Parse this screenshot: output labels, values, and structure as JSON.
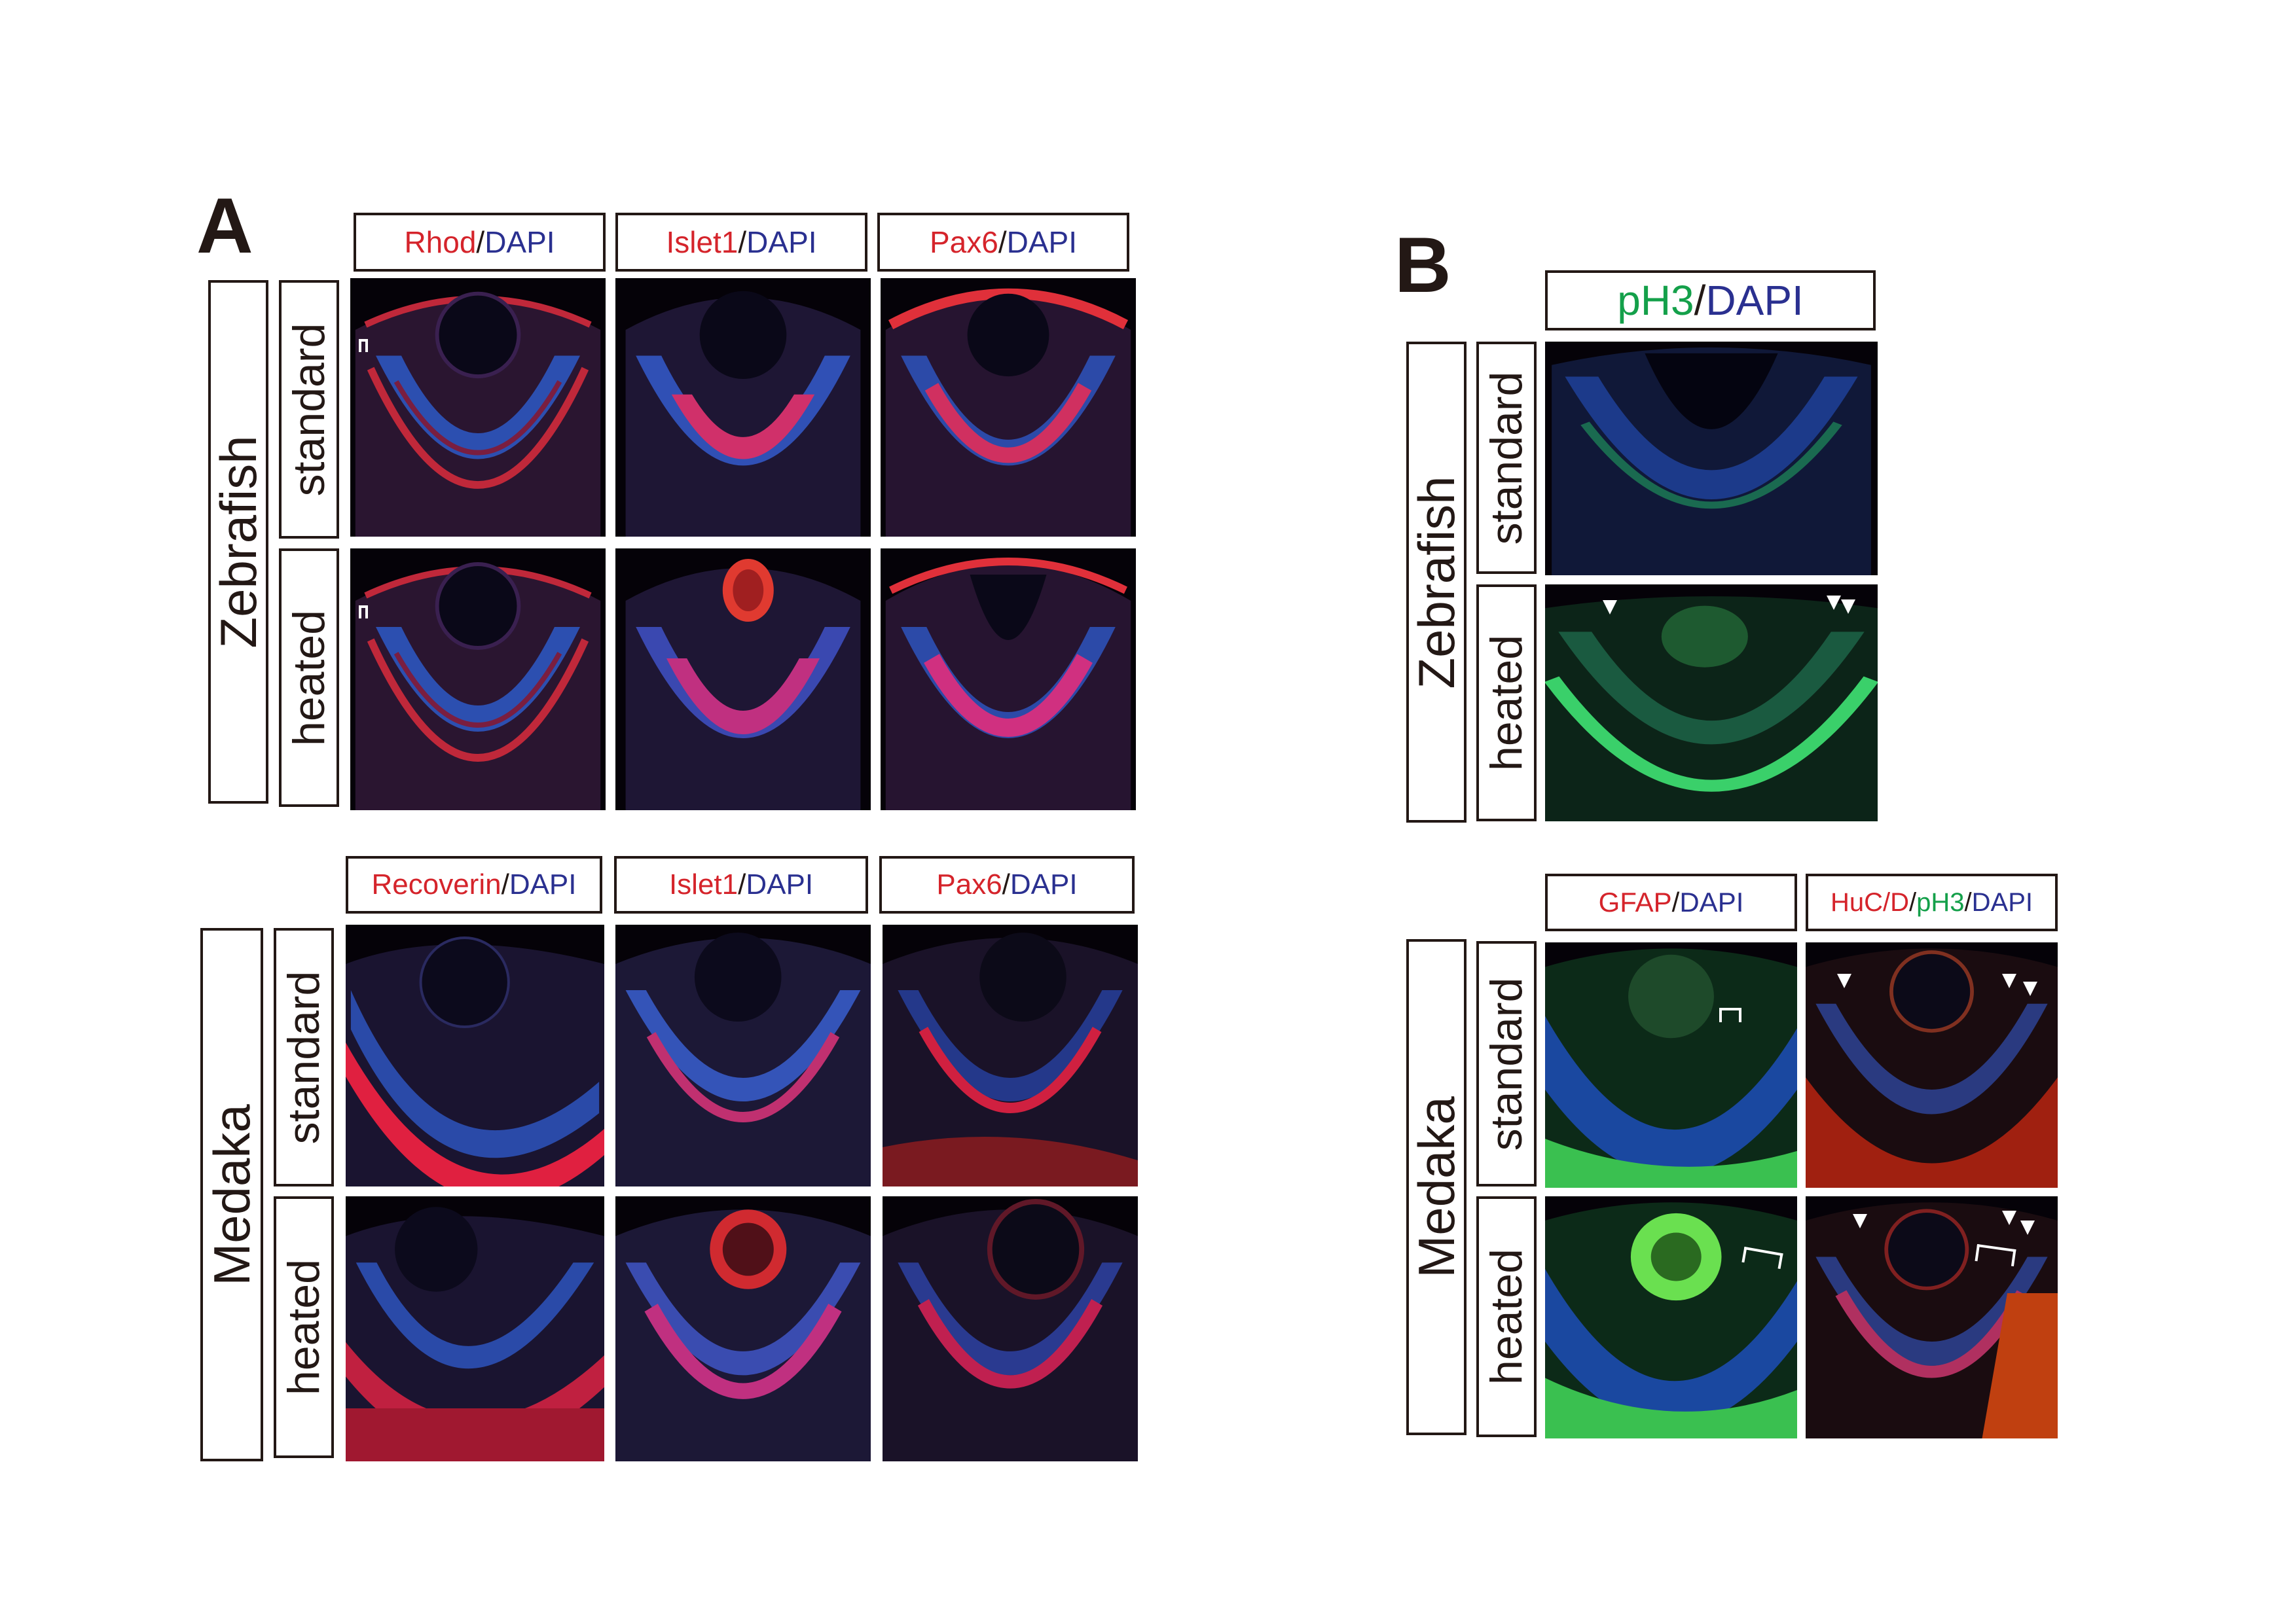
{
  "panels": {
    "a_letter": "A",
    "b_letter": "B"
  },
  "panel_a": {
    "zebrafish": {
      "species_label": "Zebrafish",
      "rows": [
        "standard",
        "heated"
      ],
      "headers": [
        {
          "marker": "Rhod",
          "sep": "/",
          "counter": "DAPI"
        },
        {
          "marker": "Islet1",
          "sep": "/",
          "counter": "DAPI"
        },
        {
          "marker": "Pax6",
          "sep": "/",
          "counter": "DAPI"
        }
      ]
    },
    "medaka": {
      "species_label": "Medaka",
      "rows": [
        "standard",
        "heated"
      ],
      "headers": [
        {
          "marker": "Recoverin",
          "sep": "/",
          "counter": "DAPI"
        },
        {
          "marker": "Islet1",
          "sep": "/",
          "counter": "DAPI"
        },
        {
          "marker": "Pax6",
          "sep": "/",
          "counter": "DAPI"
        }
      ]
    }
  },
  "panel_b": {
    "zebrafish": {
      "species_label": "Zebrafish",
      "rows": [
        "standard",
        "heated"
      ],
      "header": {
        "marker": "pH3",
        "sep": "/",
        "counter": "DAPI"
      }
    },
    "medaka": {
      "species_label": "Medaka",
      "rows": [
        "standard",
        "heated"
      ],
      "headers": [
        {
          "marker": "GFAP",
          "sep": "/",
          "counter": "DAPI"
        },
        {
          "marker1": "HuC/D",
          "sep1": "/",
          "marker2": "pH3",
          "sep2": "/",
          "counter": "DAPI"
        }
      ]
    }
  },
  "colors": {
    "marker_red": "#d5242b",
    "dapi_blue": "#2a3090",
    "ph3_green": "#14a04a",
    "text_dark": "#231815",
    "image_bg": "#050208"
  }
}
